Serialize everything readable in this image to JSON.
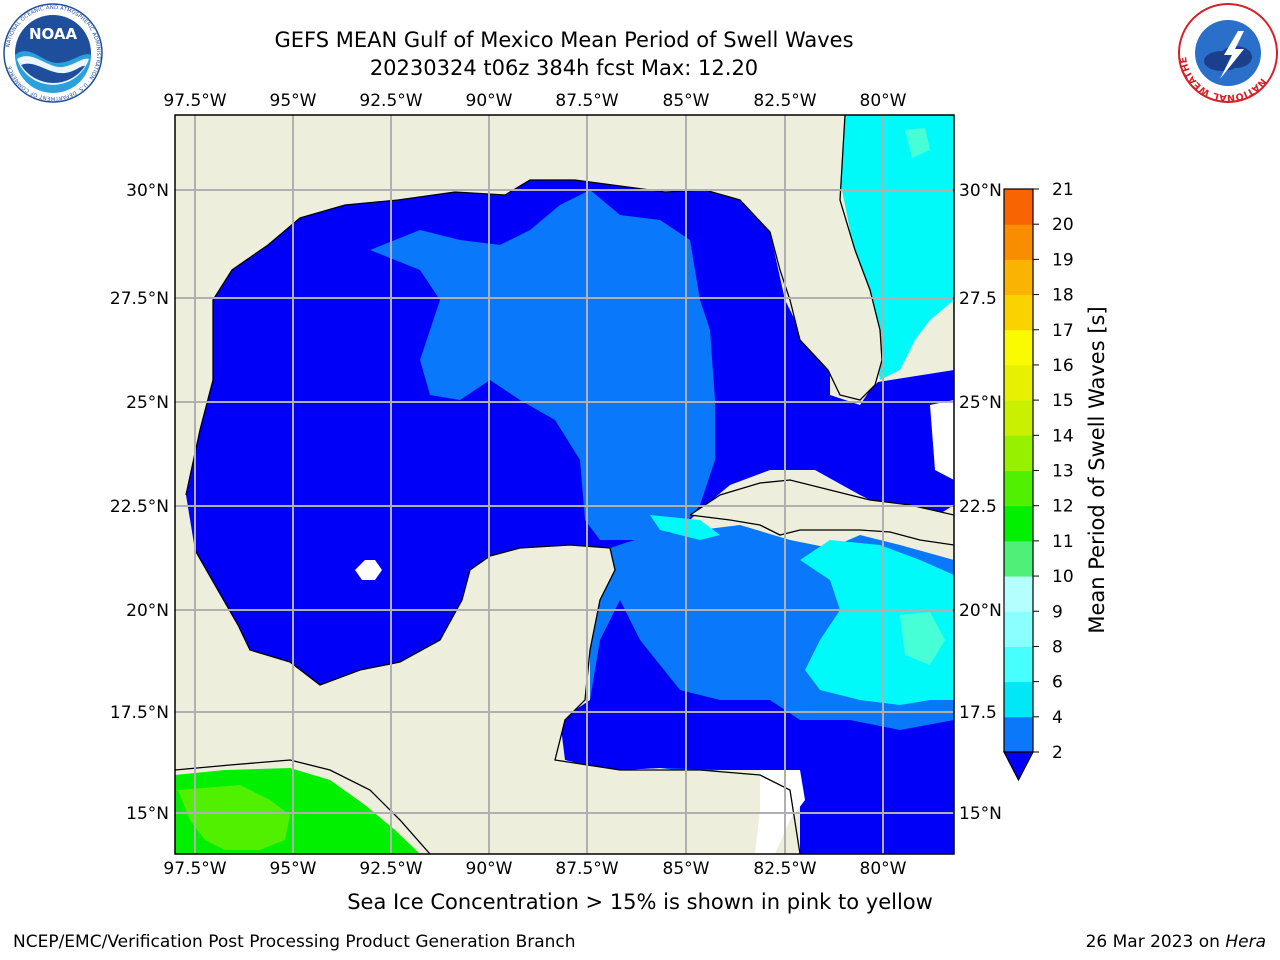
{
  "title": {
    "line1": "GEFS MEAN Gulf of Mexico Mean Period of Swell Waves",
    "line2": "20230324 t06z 384h fcst   Max: 12.20"
  },
  "map": {
    "lon_labels": [
      "97.5°W",
      "95°W",
      "92.5°W",
      "90°W",
      "87.5°W",
      "85°W",
      "82.5°W",
      "80°W"
    ],
    "lat_labels_left": [
      "30°N",
      "27.5°N",
      "25°N",
      "22.5°N",
      "20°N",
      "17.5°N",
      "15°N"
    ],
    "lat_labels_right": [
      "30°N",
      "27.5",
      "25°N",
      "22.5",
      "20°N",
      "17.5",
      "15°N"
    ],
    "colors": {
      "land": "#eeeedc",
      "band_2_4": "#0000fa",
      "band_4_6": "#0a78fa",
      "band_6_8": "#00fafa",
      "band_8_10": "#46ffd7",
      "band_10_11": "#00f000",
      "band_11_12": "#50f000",
      "grid": "#b0b0b0"
    }
  },
  "colorbar": {
    "title": "Mean Period of Swell Waves [s]",
    "ticks": [
      "2",
      "4",
      "6",
      "8",
      "9",
      "10",
      "11",
      "12",
      "13",
      "14",
      "15",
      "16",
      "17",
      "18",
      "19",
      "20",
      "21"
    ],
    "colors": [
      "#0a78fa",
      "#00e8f8",
      "#46ffff",
      "#8affff",
      "#b4ffff",
      "#50f078",
      "#00f000",
      "#50f000",
      "#96f000",
      "#c8f000",
      "#e6f000",
      "#fafa00",
      "#fad200",
      "#fab400",
      "#fa8c00",
      "#fa6400",
      "#fa3c00",
      "#fa0000"
    ],
    "extend_color": "#0000fa"
  },
  "ice_note": "Sea Ice Concentration > 15% is shown in pink to yellow",
  "footer": {
    "left": "NCEP/EMC/Verification Post Processing Product Generation Branch",
    "date": "26 Mar 2023 on ",
    "host": "Hera"
  },
  "logos": {
    "noaa_text": "NOAA",
    "noaa_ring": "NATIONAL OCEANIC AND ATMOSPHERIC ADMINISTRATION · U.S. DEPARTMENT OF COMMERCE",
    "nws_ring": "NATIONAL WEATHER SERVICE"
  }
}
